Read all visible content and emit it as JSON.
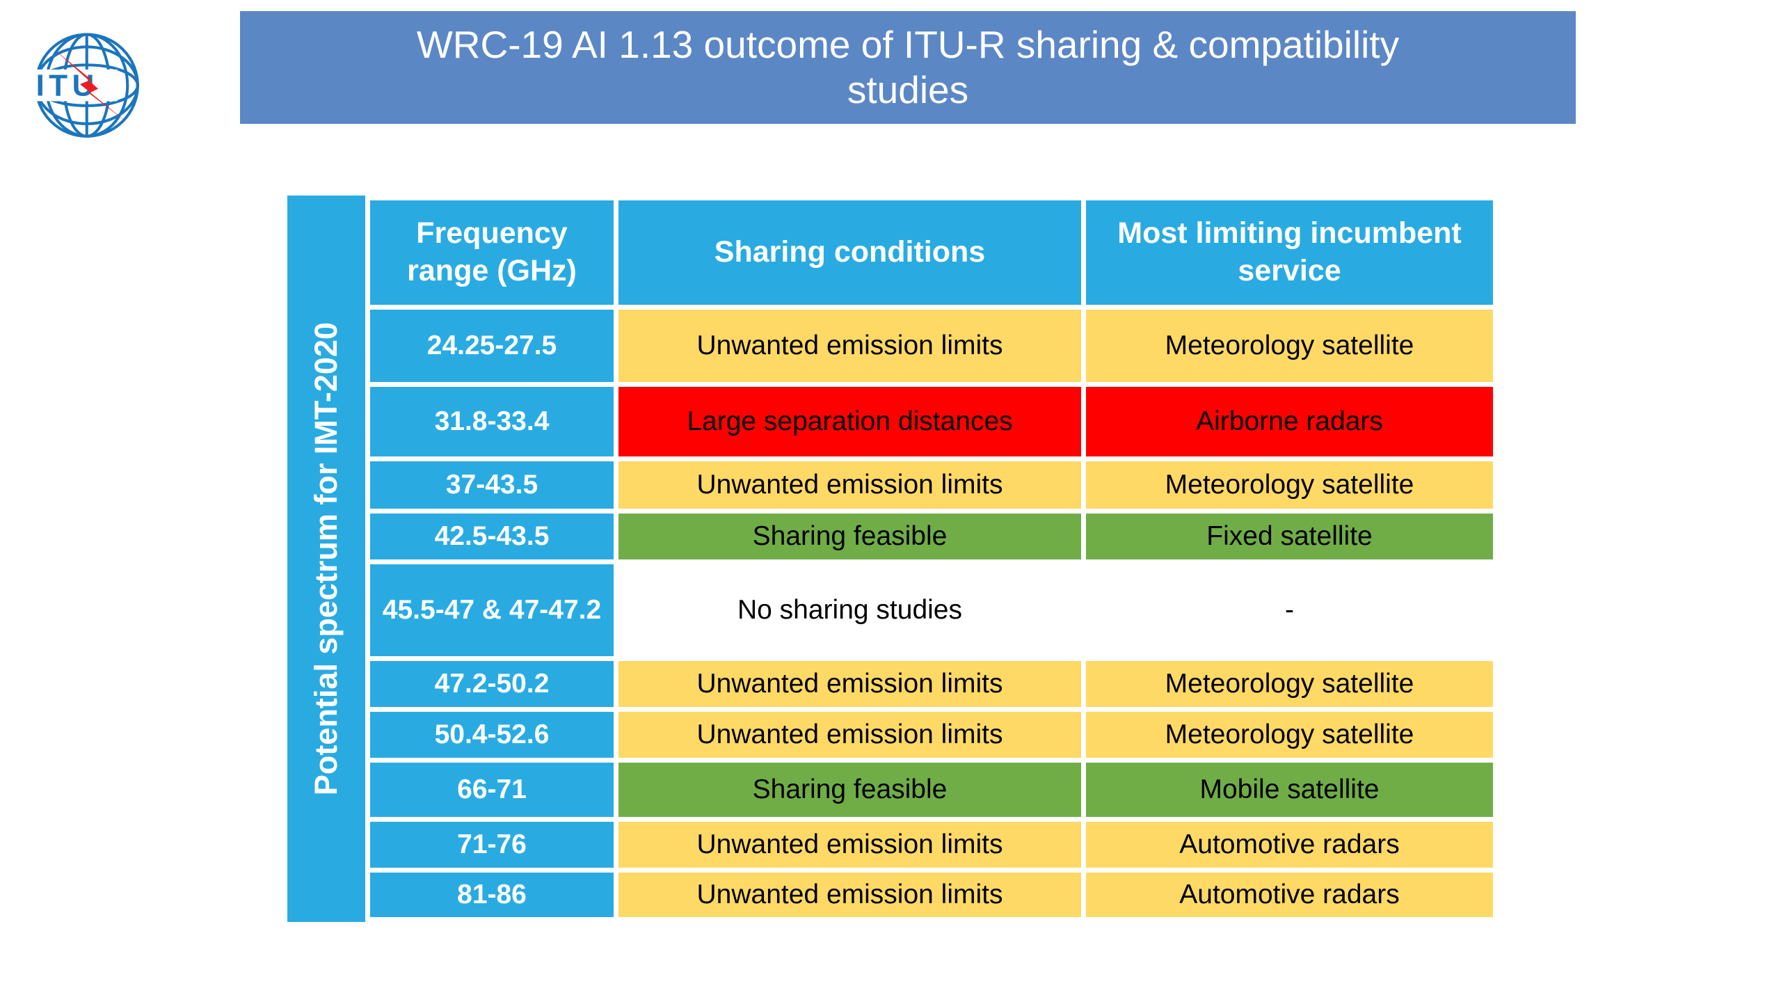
{
  "slide": {
    "title_line1": "WRC-19 AI 1.13 outcome of ITU-R sharing & compatibility",
    "title_line2": "studies"
  },
  "logo": {
    "text": "ITU"
  },
  "table": {
    "side_label": "Potential spectrum for IMT-2020",
    "headers": [
      "Frequency range (GHz)",
      "Sharing conditions",
      "Most limiting incumbent service"
    ],
    "rows": [
      {
        "frequency": "24.25-27.5",
        "sharing": "Unwanted emission limits",
        "service": "Meteorology satellite",
        "status": "yellow"
      },
      {
        "frequency": "31.8-33.4",
        "sharing": "Large separation distances",
        "service": "Airborne radars",
        "status": "red"
      },
      {
        "frequency": "37-43.5",
        "sharing": "Unwanted emission limits",
        "service": "Meteorology satellite",
        "status": "yellow"
      },
      {
        "frequency": "42.5-43.5",
        "sharing": "Sharing feasible",
        "service": "Fixed satellite",
        "status": "green"
      },
      {
        "frequency": "45.5-47 & 47-47.2",
        "sharing": "No sharing studies",
        "service": "-",
        "status": "white"
      },
      {
        "frequency": "47.2-50.2",
        "sharing": "Unwanted emission limits",
        "service": "Meteorology satellite",
        "status": "yellow"
      },
      {
        "frequency": "50.4-52.6",
        "sharing": "Unwanted emission limits",
        "service": "Meteorology satellite",
        "status": "yellow"
      },
      {
        "frequency": "66-71",
        "sharing": "Sharing feasible",
        "service": "Mobile satellite",
        "status": "green"
      },
      {
        "frequency": "71-76",
        "sharing": "Unwanted emission limits",
        "service": "Automotive radars",
        "status": "yellow"
      },
      {
        "frequency": "81-86",
        "sharing": "Unwanted emission limits",
        "service": "Automotive radars",
        "status": "yellow"
      }
    ],
    "colors": {
      "cyan": "#29ABE2",
      "yellow": "#FFD966",
      "red": "#FF0000",
      "green": "#70AD47",
      "white": "#FFFFFF",
      "banner": "#5B87C5"
    }
  }
}
